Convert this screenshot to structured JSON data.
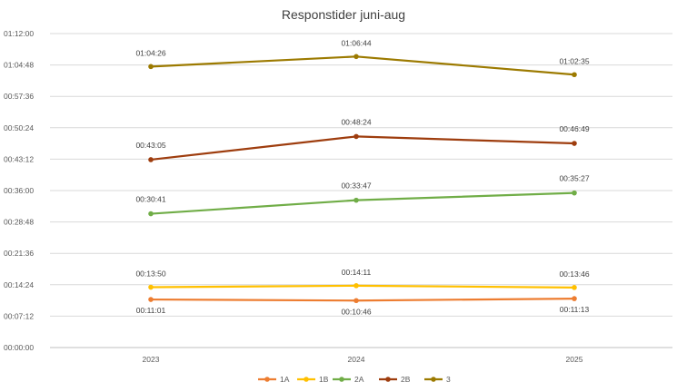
{
  "chart_data": {
    "type": "line",
    "title": "Responstider juni-aug",
    "xlabel": "",
    "ylabel": "",
    "categories": [
      "2023",
      "2024",
      "2025"
    ],
    "ylim_seconds": [
      0,
      4320
    ],
    "y_ticks": [
      "00:00:00",
      "00:07:12",
      "00:14:24",
      "00:21:36",
      "00:28:48",
      "00:36:00",
      "00:43:12",
      "00:50:24",
      "00:57:36",
      "01:04:48",
      "01:12:00"
    ],
    "grid": true,
    "legend_position": "bottom",
    "series": [
      {
        "name": "1A",
        "color": "#ED7D31",
        "values": [
          "00:11:01",
          "00:10:46",
          "00:11:13"
        ]
      },
      {
        "name": "1B",
        "color": "#FFC000",
        "values": [
          "00:13:50",
          "00:14:11",
          "00:13:46"
        ]
      },
      {
        "name": "2A",
        "color": "#70AD47",
        "values": [
          "00:30:41",
          "00:33:47",
          "00:35:27"
        ]
      },
      {
        "name": "2B",
        "color": "#9E3D0E",
        "values": [
          "00:43:05",
          "00:48:24",
          "00:46:49"
        ]
      },
      {
        "name": "3",
        "color": "#9C7A00",
        "values": [
          "01:04:26",
          "01:06:44",
          "01:02:35"
        ]
      }
    ]
  }
}
